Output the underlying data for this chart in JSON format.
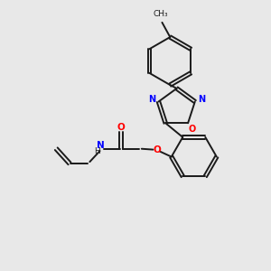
{
  "background_color": "#e8e8e8",
  "bond_color": "#1a1a1a",
  "N_color": "#0000ff",
  "O_color": "#ff0000",
  "figsize": [
    3.0,
    3.0
  ],
  "dpi": 100,
  "xlim": [
    0,
    10
  ],
  "ylim": [
    0,
    10
  ]
}
